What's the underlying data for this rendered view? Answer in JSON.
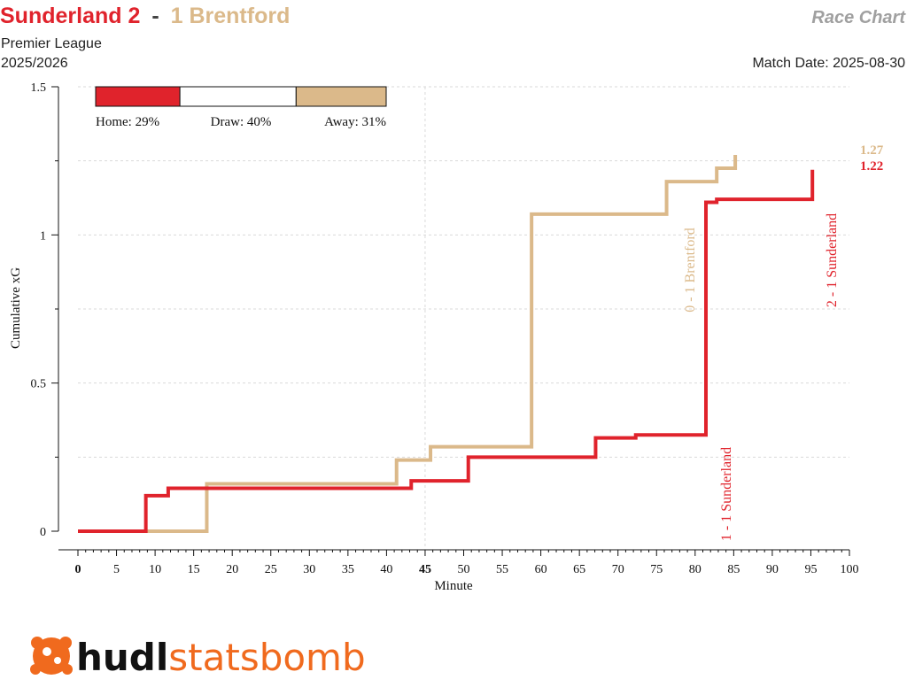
{
  "header": {
    "home_team_score": "Sunderland 2",
    "separator": "-",
    "away_team_score": "1 Brentford",
    "chart_kind": "Race Chart",
    "competition": "Premier League",
    "season": "2025/2026",
    "match_date": "Match Date: 2025-08-30"
  },
  "colors": {
    "home": "#e0232c",
    "away": "#dbb98a",
    "draw": "#ffffff",
    "grid": "#d9d9d9",
    "logo_orange": "#f06a1e"
  },
  "probabilities": {
    "home": 0.29,
    "draw": 0.4,
    "away": 0.31,
    "home_label": "Home: 29%",
    "draw_label": "Draw: 40%",
    "away_label": "Away: 31%"
  },
  "logo": {
    "word1": "hudl",
    "word2": "statsbomb",
    "icon": "statsbomb-bomb-icon"
  },
  "chart_data": {
    "type": "line",
    "step": true,
    "xlabel": "Minute",
    "ylabel": "Cumulative xG",
    "xlim": [
      0,
      100
    ],
    "ylim": [
      0,
      1.5
    ],
    "x_ticks": [
      0,
      5,
      10,
      15,
      20,
      25,
      30,
      35,
      40,
      45,
      50,
      55,
      60,
      65,
      70,
      75,
      80,
      85,
      90,
      95,
      100
    ],
    "x_ticks_bold": [
      0,
      45
    ],
    "y_ticks": [
      0,
      0.5,
      1,
      1.5
    ],
    "y_tick_labels": [
      "0",
      "0.5",
      "1",
      "1.5"
    ],
    "grid": true,
    "series": [
      {
        "name": "Sunderland",
        "role": "home",
        "x": [
          0,
          8.8,
          11.7,
          43.2,
          50.6,
          67.1,
          72.3,
          81.4,
          82.8,
          95.2
        ],
        "y": [
          0,
          0.12,
          0.145,
          0.17,
          0.25,
          0.315,
          0.325,
          1.11,
          1.12,
          1.22
        ],
        "end_x": 95.2,
        "final_label": "1.22"
      },
      {
        "name": "Brentford",
        "role": "away",
        "x": [
          0,
          16.7,
          41.3,
          45.7,
          58.8,
          76.3,
          82.8,
          85.2
        ],
        "y": [
          0,
          0.16,
          0.24,
          0.285,
          1.07,
          1.18,
          1.225,
          1.27
        ],
        "end_x": 85.2,
        "final_label": "1.27"
      }
    ],
    "goals": [
      {
        "minute": 76.3,
        "team": "away",
        "label": "0 - 1 Brentford"
      },
      {
        "minute": 81.4,
        "team": "home",
        "label": "1 - 1 Sunderland"
      },
      {
        "minute": 95.2,
        "team": "home",
        "label": "2 - 1 Sunderland"
      }
    ]
  }
}
